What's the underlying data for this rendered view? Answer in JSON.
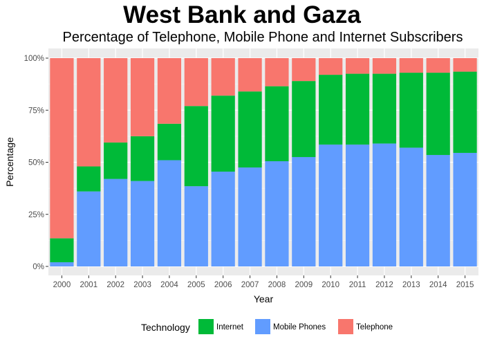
{
  "title": "West Bank and Gaza",
  "subtitle": "Percentage of Telephone, Mobile Phone and Internet Subscribers",
  "chart_data": {
    "type": "bar",
    "stacked": true,
    "normalized": true,
    "title": "West Bank and Gaza",
    "subtitle": "Percentage of Telephone, Mobile Phone and Internet Subscribers",
    "xlabel": "Year",
    "ylabel": "Percentage",
    "ylim": [
      0,
      1
    ],
    "yticks": [
      "0%",
      "25%",
      "50%",
      "75%",
      "100%"
    ],
    "categories": [
      "2000",
      "2001",
      "2002",
      "2003",
      "2004",
      "2005",
      "2006",
      "2007",
      "2008",
      "2009",
      "2010",
      "2011",
      "2012",
      "2013",
      "2014",
      "2015"
    ],
    "series": [
      {
        "name": "Mobile Phones",
        "color": "#619CFF",
        "values": [
          0.02,
          0.36,
          0.42,
          0.41,
          0.51,
          0.385,
          0.455,
          0.475,
          0.505,
          0.525,
          0.585,
          0.585,
          0.59,
          0.57,
          0.535,
          0.545
        ]
      },
      {
        "name": "Internet",
        "color": "#00BA38",
        "values": [
          0.115,
          0.12,
          0.175,
          0.215,
          0.175,
          0.385,
          0.365,
          0.365,
          0.36,
          0.365,
          0.335,
          0.34,
          0.335,
          0.36,
          0.395,
          0.39
        ]
      },
      {
        "name": "Telephone",
        "color": "#F8766D",
        "values": [
          0.865,
          0.52,
          0.405,
          0.375,
          0.315,
          0.23,
          0.18,
          0.16,
          0.135,
          0.11,
          0.08,
          0.075,
          0.075,
          0.07,
          0.07,
          0.065
        ]
      }
    ],
    "grid": true,
    "legend": {
      "title": "Technology",
      "position": "bottom",
      "items": [
        {
          "label": "Internet",
          "color": "#00BA38"
        },
        {
          "label": "Mobile Phones",
          "color": "#619CFF"
        },
        {
          "label": "Telephone",
          "color": "#F8766D"
        }
      ]
    },
    "panel_background": "#EBEBEB"
  }
}
